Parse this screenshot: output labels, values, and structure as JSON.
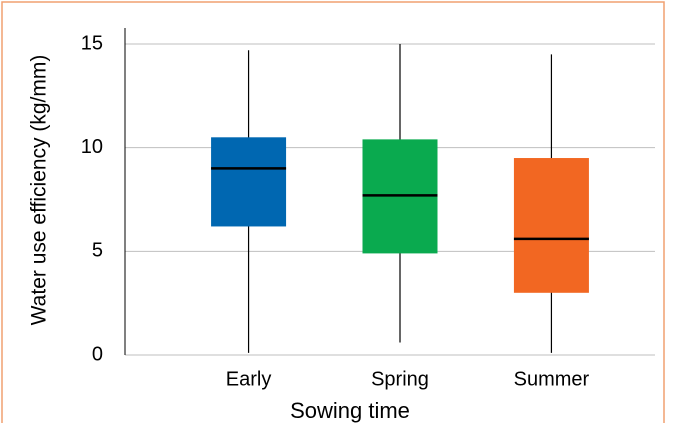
{
  "chart_data": {
    "type": "box",
    "x_label": "Sowing time",
    "y_label": "Water use efficiency (kg/mm)",
    "categories": [
      "Early",
      "Spring",
      "Summer"
    ],
    "boxes": [
      {
        "min": 0.1,
        "q1": 6.2,
        "median": 9.0,
        "q3": 10.5,
        "max": 14.7,
        "color": "#0067b1"
      },
      {
        "min": 0.6,
        "q1": 4.9,
        "median": 7.7,
        "q3": 10.4,
        "max": 15.0,
        "color": "#0aaa4f"
      },
      {
        "min": 0.1,
        "q1": 3.0,
        "median": 5.6,
        "q3": 9.5,
        "max": 14.5,
        "color": "#f26722"
      }
    ],
    "ylim": [
      0,
      15
    ],
    "yticks": [
      0,
      5,
      10,
      15
    ],
    "grid": true
  }
}
